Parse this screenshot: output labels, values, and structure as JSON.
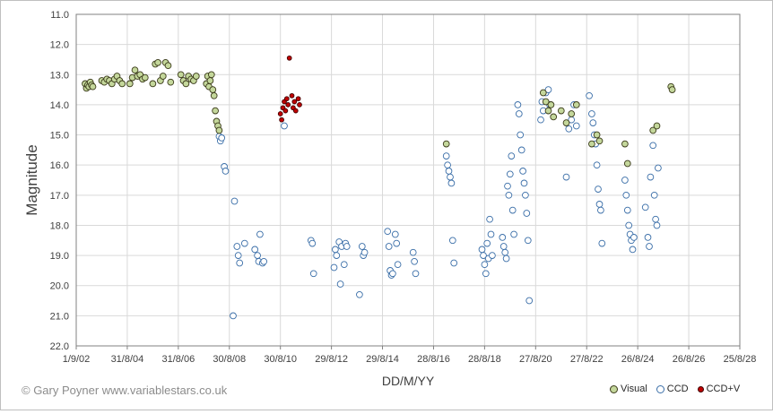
{
  "chart_data": {
    "type": "scatter",
    "title": "",
    "xlabel": "DD/M/YY",
    "ylabel": "Magnitude",
    "xlim": [
      2002.0,
      2028.0
    ],
    "ylim": [
      11.0,
      22.0
    ],
    "y_inverted": true,
    "grid": true,
    "x_ticks": [
      2002.0,
      2004.0,
      2006.0,
      2008.0,
      2010.0,
      2012.0,
      2014.0,
      2016.0,
      2018.0,
      2020.0,
      2022.0,
      2024.0,
      2026.0,
      2028.0
    ],
    "x_tick_labels": [
      "1/9/02",
      "31/8/04",
      "31/8/06",
      "30/8/08",
      "30/8/10",
      "29/8/12",
      "29/8/14",
      "28/8/16",
      "28/8/18",
      "27/8/20",
      "27/8/22",
      "26/8/24",
      "26/8/26",
      "25/8/28"
    ],
    "y_ticks": [
      11.0,
      12.0,
      13.0,
      14.0,
      15.0,
      16.0,
      17.0,
      18.0,
      19.0,
      20.0,
      21.0,
      22.0
    ],
    "y_tick_labels": [
      "11.0",
      "12.0",
      "13.0",
      "14.0",
      "15.0",
      "16.0",
      "17.0",
      "18.0",
      "19.0",
      "20.0",
      "21.0",
      "22.0"
    ],
    "legend": {
      "position": "bottom-right",
      "entries": [
        "Visual",
        "CCD",
        "CCD+V"
      ]
    },
    "series": [
      {
        "name": "Visual",
        "color": "#c4d79b",
        "edge": "#3a3a1a",
        "points": [
          [
            2002.35,
            13.3
          ],
          [
            2002.4,
            13.45
          ],
          [
            2002.45,
            13.35
          ],
          [
            2002.5,
            13.4
          ],
          [
            2002.55,
            13.25
          ],
          [
            2002.6,
            13.35
          ],
          [
            2002.65,
            13.4
          ],
          [
            2003.0,
            13.2
          ],
          [
            2003.1,
            13.25
          ],
          [
            2003.2,
            13.15
          ],
          [
            2003.3,
            13.2
          ],
          [
            2003.4,
            13.3
          ],
          [
            2003.5,
            13.15
          ],
          [
            2003.6,
            13.05
          ],
          [
            2003.7,
            13.2
          ],
          [
            2003.8,
            13.3
          ],
          [
            2004.1,
            13.3
          ],
          [
            2004.2,
            13.1
          ],
          [
            2004.3,
            12.85
          ],
          [
            2004.4,
            13.05
          ],
          [
            2004.5,
            13.0
          ],
          [
            2004.6,
            13.15
          ],
          [
            2004.7,
            13.1
          ],
          [
            2005.0,
            13.3
          ],
          [
            2005.1,
            12.65
          ],
          [
            2005.2,
            12.6
          ],
          [
            2005.3,
            13.2
          ],
          [
            2005.4,
            13.05
          ],
          [
            2005.5,
            12.6
          ],
          [
            2005.6,
            12.7
          ],
          [
            2005.7,
            13.25
          ],
          [
            2006.1,
            13.0
          ],
          [
            2006.2,
            13.2
          ],
          [
            2006.3,
            13.3
          ],
          [
            2006.4,
            13.05
          ],
          [
            2006.5,
            13.15
          ],
          [
            2006.6,
            13.2
          ],
          [
            2006.7,
            13.05
          ],
          [
            2007.1,
            13.3
          ],
          [
            2007.15,
            13.05
          ],
          [
            2007.2,
            13.4
          ],
          [
            2007.25,
            13.2
          ],
          [
            2007.3,
            13.0
          ],
          [
            2007.35,
            13.5
          ],
          [
            2007.4,
            13.7
          ],
          [
            2007.45,
            14.2
          ],
          [
            2007.5,
            14.55
          ],
          [
            2007.55,
            14.7
          ],
          [
            2007.6,
            14.85
          ],
          [
            2016.5,
            15.3
          ],
          [
            2022.2,
            15.3
          ],
          [
            2022.4,
            15.0
          ],
          [
            2022.5,
            15.2
          ],
          [
            2023.5,
            15.3
          ],
          [
            2023.6,
            15.95
          ],
          [
            2024.6,
            14.85
          ],
          [
            2024.75,
            14.7
          ],
          [
            2025.3,
            13.4
          ],
          [
            2025.35,
            13.5
          ],
          [
            2020.3,
            13.6
          ],
          [
            2020.4,
            13.9
          ],
          [
            2020.5,
            14.2
          ],
          [
            2020.6,
            14.0
          ],
          [
            2020.7,
            14.4
          ],
          [
            2021.0,
            14.2
          ],
          [
            2021.2,
            14.6
          ],
          [
            2021.4,
            14.3
          ],
          [
            2021.6,
            14.0
          ]
        ]
      },
      {
        "name": "CCD",
        "color": "#ffffff",
        "edge": "#3a6ea8",
        "points": [
          [
            2007.6,
            15.05
          ],
          [
            2007.65,
            15.2
          ],
          [
            2007.7,
            15.1
          ],
          [
            2007.8,
            16.05
          ],
          [
            2007.85,
            16.2
          ],
          [
            2008.2,
            17.2
          ],
          [
            2008.3,
            18.7
          ],
          [
            2008.35,
            19.0
          ],
          [
            2008.4,
            19.25
          ],
          [
            2008.6,
            18.6
          ],
          [
            2008.15,
            21.0
          ],
          [
            2009.0,
            18.8
          ],
          [
            2009.1,
            19.0
          ],
          [
            2009.15,
            19.2
          ],
          [
            2009.2,
            18.3
          ],
          [
            2009.3,
            19.25
          ],
          [
            2009.35,
            19.2
          ],
          [
            2010.15,
            14.7
          ],
          [
            2011.2,
            18.5
          ],
          [
            2011.25,
            18.6
          ],
          [
            2011.3,
            19.6
          ],
          [
            2012.1,
            19.4
          ],
          [
            2012.15,
            18.8
          ],
          [
            2012.2,
            19.0
          ],
          [
            2012.3,
            18.55
          ],
          [
            2012.35,
            19.95
          ],
          [
            2012.4,
            18.7
          ],
          [
            2012.5,
            19.3
          ],
          [
            2012.55,
            18.6
          ],
          [
            2012.6,
            18.7
          ],
          [
            2013.1,
            20.3
          ],
          [
            2013.2,
            18.7
          ],
          [
            2013.25,
            19.0
          ],
          [
            2013.3,
            18.9
          ],
          [
            2014.2,
            18.2
          ],
          [
            2014.25,
            18.7
          ],
          [
            2014.3,
            19.5
          ],
          [
            2014.35,
            19.65
          ],
          [
            2014.4,
            19.6
          ],
          [
            2014.5,
            18.3
          ],
          [
            2014.55,
            18.6
          ],
          [
            2014.6,
            19.3
          ],
          [
            2015.2,
            18.9
          ],
          [
            2015.25,
            19.2
          ],
          [
            2015.3,
            19.6
          ],
          [
            2016.5,
            15.7
          ],
          [
            2016.55,
            16.0
          ],
          [
            2016.6,
            16.2
          ],
          [
            2016.65,
            16.4
          ],
          [
            2016.7,
            16.6
          ],
          [
            2016.75,
            18.5
          ],
          [
            2016.8,
            19.25
          ],
          [
            2017.9,
            18.8
          ],
          [
            2017.95,
            19.0
          ],
          [
            2018.0,
            19.3
          ],
          [
            2018.05,
            19.6
          ],
          [
            2018.1,
            18.6
          ],
          [
            2018.15,
            19.1
          ],
          [
            2018.2,
            17.8
          ],
          [
            2018.25,
            18.3
          ],
          [
            2018.3,
            19.0
          ],
          [
            2018.7,
            18.4
          ],
          [
            2018.75,
            18.7
          ],
          [
            2018.8,
            18.9
          ],
          [
            2018.85,
            19.1
          ],
          [
            2018.9,
            16.7
          ],
          [
            2018.95,
            17.0
          ],
          [
            2019.0,
            16.3
          ],
          [
            2019.05,
            15.7
          ],
          [
            2019.1,
            17.5
          ],
          [
            2019.15,
            18.3
          ],
          [
            2019.3,
            14.0
          ],
          [
            2019.35,
            14.3
          ],
          [
            2019.4,
            15.0
          ],
          [
            2019.45,
            15.5
          ],
          [
            2019.5,
            16.2
          ],
          [
            2019.55,
            16.6
          ],
          [
            2019.6,
            17.0
          ],
          [
            2019.65,
            17.6
          ],
          [
            2019.7,
            18.5
          ],
          [
            2019.75,
            20.5
          ],
          [
            2020.2,
            14.5
          ],
          [
            2020.25,
            13.9
          ],
          [
            2020.3,
            14.2
          ],
          [
            2020.4,
            13.6
          ],
          [
            2020.5,
            13.5
          ],
          [
            2020.55,
            14.0
          ],
          [
            2021.2,
            16.4
          ],
          [
            2021.3,
            14.8
          ],
          [
            2021.4,
            14.5
          ],
          [
            2021.5,
            14.0
          ],
          [
            2021.6,
            14.7
          ],
          [
            2022.1,
            13.7
          ],
          [
            2022.2,
            14.3
          ],
          [
            2022.25,
            14.6
          ],
          [
            2022.3,
            15.0
          ],
          [
            2022.35,
            15.3
          ],
          [
            2022.4,
            16.0
          ],
          [
            2022.45,
            16.8
          ],
          [
            2022.5,
            17.3
          ],
          [
            2022.55,
            17.5
          ],
          [
            2022.6,
            18.6
          ],
          [
            2023.5,
            16.5
          ],
          [
            2023.55,
            17.0
          ],
          [
            2023.6,
            17.5
          ],
          [
            2023.65,
            18.0
          ],
          [
            2023.7,
            18.3
          ],
          [
            2023.75,
            18.5
          ],
          [
            2023.8,
            18.8
          ],
          [
            2023.85,
            18.4
          ],
          [
            2024.3,
            17.4
          ],
          [
            2024.4,
            18.4
          ],
          [
            2024.45,
            18.7
          ],
          [
            2024.5,
            16.4
          ],
          [
            2024.6,
            15.35
          ],
          [
            2024.65,
            17.0
          ],
          [
            2024.7,
            17.8
          ],
          [
            2024.75,
            18.0
          ],
          [
            2024.8,
            16.1
          ]
        ]
      },
      {
        "name": "CCD+V",
        "color": "#c00000",
        "edge": "#400000",
        "points": [
          [
            2010.0,
            14.3
          ],
          [
            2010.05,
            14.5
          ],
          [
            2010.1,
            14.1
          ],
          [
            2010.15,
            13.9
          ],
          [
            2010.2,
            14.2
          ],
          [
            2010.25,
            13.8
          ],
          [
            2010.3,
            14.0
          ],
          [
            2010.35,
            12.45
          ],
          [
            2010.45,
            13.7
          ],
          [
            2010.5,
            14.1
          ],
          [
            2010.55,
            13.9
          ],
          [
            2010.6,
            14.2
          ],
          [
            2010.7,
            13.8
          ],
          [
            2010.75,
            14.0
          ]
        ]
      }
    ]
  },
  "footer": {
    "copyright": "© Gary Poyner  www.variablestars.co.uk"
  }
}
